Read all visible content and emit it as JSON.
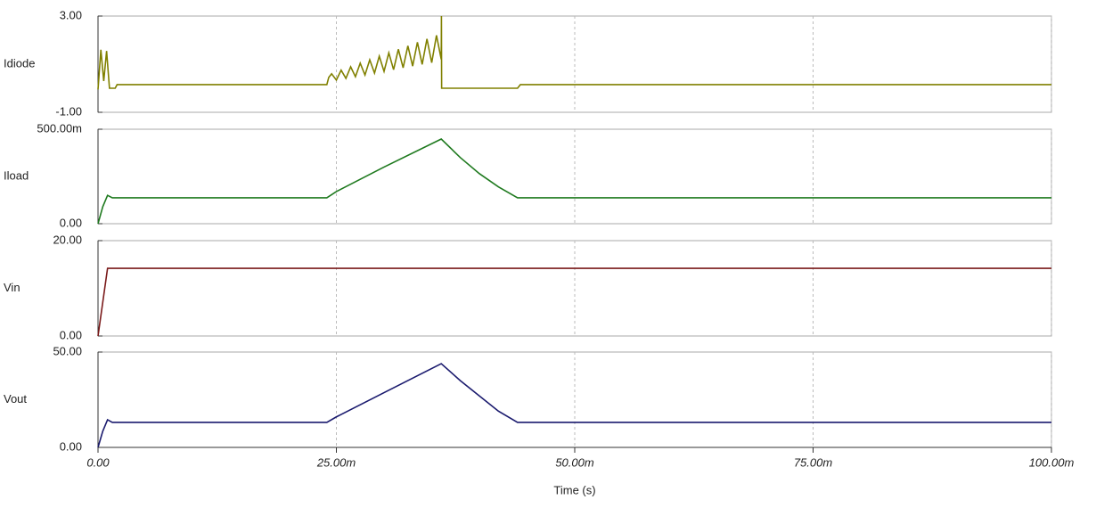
{
  "chart_data": [
    {
      "type": "line",
      "series": [
        {
          "name": "Idiode",
          "color": "#808000",
          "values": [
            -0.05,
            1.6,
            0.3,
            1.55,
            0.0,
            0.0,
            0.15,
            0.15,
            0.45,
            0.6,
            0.34,
            0.75,
            0.41,
            0.89,
            0.48,
            1.04,
            0.55,
            1.18,
            0.63,
            1.33,
            0.7,
            1.47,
            0.77,
            1.62,
            0.85,
            1.76,
            0.92,
            1.91,
            0.99,
            2.05,
            1.06,
            2.2,
            1.2,
            3.0,
            0.0,
            0.0,
            0.15,
            0.15
          ]
        }
      ],
      "x": [
        0,
        0.0003,
        0.0006,
        0.0009,
        0.0012,
        0.0018,
        0.002,
        0.024,
        0.0242,
        0.0245,
        0.025,
        0.0255,
        0.026,
        0.0265,
        0.027,
        0.0275,
        0.028,
        0.0285,
        0.029,
        0.0295,
        0.03,
        0.0305,
        0.031,
        0.0315,
        0.032,
        0.0325,
        0.033,
        0.0335,
        0.034,
        0.0345,
        0.035,
        0.0355,
        0.036,
        0.03602,
        0.03604,
        0.044,
        0.0443,
        0.1
      ],
      "ylim": [
        -1,
        3
      ],
      "yticks": [
        {
          "value": -1,
          "label": "-1.00"
        },
        {
          "value": 3,
          "label": "3.00"
        }
      ]
    },
    {
      "type": "line",
      "series": [
        {
          "name": "Iload",
          "color": "#1f7a1f",
          "values": [
            0,
            0.09,
            0.15,
            0.137,
            0.137,
            0.137,
            0.17,
            0.3,
            0.448,
            0.35,
            0.265,
            0.195,
            0.137,
            0.137
          ]
        }
      ],
      "x": [
        0,
        0.0005,
        0.001,
        0.0015,
        0.0025,
        0.024,
        0.025,
        0.03,
        0.036,
        0.038,
        0.04,
        0.042,
        0.044,
        0.1
      ],
      "ylim": [
        0,
        0.5
      ],
      "yticks": [
        {
          "value": 0,
          "label": "0.00"
        },
        {
          "value": 0.5,
          "label": "500.00m"
        }
      ]
    },
    {
      "type": "line",
      "series": [
        {
          "name": "Vin",
          "color": "#7a1a1a",
          "values": [
            0,
            14.2,
            14.2
          ]
        }
      ],
      "x": [
        0,
        0.001,
        0.1
      ],
      "ylim": [
        0,
        20
      ],
      "yticks": [
        {
          "value": 0,
          "label": "0.00"
        },
        {
          "value": 20,
          "label": "20.00"
        }
      ]
    },
    {
      "type": "line",
      "series": [
        {
          "name": "Vout",
          "color": "#1a1a6e",
          "values": [
            0,
            8.5,
            14.5,
            13.1,
            13.1,
            13.1,
            16,
            28.7,
            43.9,
            35,
            27,
            19,
            13.1,
            13.1
          ]
        }
      ],
      "x": [
        0,
        0.0005,
        0.001,
        0.0015,
        0.0025,
        0.024,
        0.025,
        0.03,
        0.036,
        0.038,
        0.04,
        0.042,
        0.044,
        0.1
      ],
      "ylim": [
        0,
        50
      ],
      "yticks": [
        {
          "value": 0,
          "label": "0.00"
        },
        {
          "value": 50,
          "label": "50.00"
        }
      ],
      "xlim": [
        0,
        0.1
      ],
      "xticks": [
        {
          "value": 0,
          "label": "0.00"
        },
        {
          "value": 0.025,
          "label": "25.00m"
        },
        {
          "value": 0.05,
          "label": "50.00m"
        },
        {
          "value": 0.075,
          "label": "75.00m"
        },
        {
          "value": 0.1,
          "label": "100.00m"
        }
      ],
      "xlabel": "Time (s)",
      "grid": true
    }
  ]
}
